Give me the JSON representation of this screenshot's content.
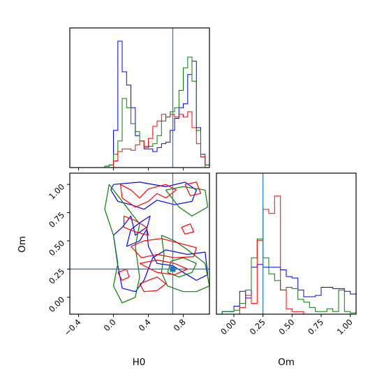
{
  "chart_data": {
    "type": "corner",
    "parameters": [
      "H0",
      "Om"
    ],
    "truth": {
      "H0": 0.68,
      "Om": 0.25
    },
    "truth_color": "#1f77b4",
    "series_colors": [
      "#0000ff",
      "#008000",
      "#ff0000"
    ],
    "panels": {
      "hist_H0": {
        "xlim": [
          -0.5,
          1.1
        ],
        "ticks": [
          -0.4,
          0.0,
          0.4,
          0.8
        ],
        "tick_labels": [
          "−0.4",
          "0.0",
          "0.4",
          "0.8"
        ],
        "bin_edges": [
          -0.1,
          -0.05,
          0.0,
          0.05,
          0.1,
          0.15,
          0.2,
          0.25,
          0.3,
          0.35,
          0.4,
          0.45,
          0.5,
          0.55,
          0.6,
          0.65,
          0.7,
          0.75,
          0.8,
          0.85,
          0.9,
          0.95,
          1.0,
          1.05,
          1.1
        ],
        "ymax": 1.0,
        "series": [
          {
            "color": "#0000ff",
            "counts": [
              0.01,
              0.02,
              0.28,
              0.95,
              0.72,
              0.62,
              0.45,
              0.24,
              0.2,
              0.14,
              0.14,
              0.12,
              0.15,
              0.18,
              0.19,
              0.28,
              0.37,
              0.45,
              0.48,
              0.7,
              0.8,
              0.3,
              0.1,
              0.02
            ]
          },
          {
            "color": "#008000",
            "counts": [
              0.01,
              0.02,
              0.1,
              0.2,
              0.52,
              0.45,
              0.33,
              0.27,
              0.2,
              0.16,
              0.16,
              0.18,
              0.24,
              0.35,
              0.38,
              0.42,
              0.45,
              0.58,
              0.75,
              0.83,
              0.65,
              0.28,
              0.08,
              0.02
            ]
          },
          {
            "color": "#ff0000",
            "counts": [
              0,
              0,
              0.05,
              0.12,
              0.14,
              0.14,
              0.13,
              0.17,
              0.2,
              0.15,
              0.22,
              0.31,
              0.35,
              0.4,
              0.38,
              0.4,
              0.38,
              0.4,
              0.38,
              0.42,
              0.3,
              0.18,
              0.08,
              0
            ]
          }
        ]
      },
      "hist_Om": {
        "xlim": [
          -0.15,
          1.05
        ],
        "ticks": [
          0.0,
          0.25,
          0.5,
          0.75,
          1.0
        ],
        "tick_labels": [
          "0.00",
          "0.25",
          "0.50",
          "0.75",
          "1.00"
        ],
        "bin_edges": [
          -0.1,
          -0.05,
          0.0,
          0.05,
          0.1,
          0.15,
          0.2,
          0.25,
          0.3,
          0.35,
          0.4,
          0.45,
          0.5,
          0.55,
          0.6,
          0.65,
          0.7,
          0.75,
          0.8,
          0.85,
          0.9,
          0.95,
          1.0,
          1.05
        ],
        "ymax": 1.0,
        "series": [
          {
            "color": "#0000ff",
            "counts": [
              0.02,
              0.02,
              0.06,
              0.17,
              0.12,
              0.35,
              0.37,
              0.35,
              0.35,
              0.35,
              0.33,
              0.28,
              0.27,
              0.18,
              0.13,
              0.13,
              0.14,
              0.2,
              0.2,
              0.19,
              0.19,
              0.17,
              0.15
            ]
          },
          {
            "color": "#008000",
            "counts": [
              0.02,
              0.02,
              0.03,
              0.08,
              0.18,
              0.42,
              0.56,
              0.42,
              0.3,
              0.25,
              0.18,
              0.2,
              0.19,
              0.11,
              0.09,
              0.05,
              0.02,
              0.02,
              0.04,
              0.02,
              0.18,
              0.02,
              0.01
            ]
          },
          {
            "color": "#ff0000",
            "counts": [
              0,
              0,
              0,
              0.05,
              0.14,
              0.08,
              0.55,
              0.78,
              0.75,
              0.88,
              0.18,
              0.04,
              0.02,
              0.02,
              0,
              0,
              0,
              0,
              0,
              0,
              0,
              0,
              0
            ]
          }
        ]
      },
      "contour_H0_Om": {
        "xlim": [
          -0.5,
          1.1
        ],
        "ylim": [
          -0.15,
          1.1
        ],
        "xticks": [
          -0.4,
          0.0,
          0.4,
          0.8
        ],
        "xtick_labels": [
          "−0.4",
          "0.0",
          "0.4",
          "0.8"
        ],
        "yticks": [
          0.0,
          0.25,
          0.5,
          0.75,
          1.0
        ],
        "ytick_labels": [
          "0.00",
          "0.25",
          "0.50",
          "0.75",
          "1.00"
        ],
        "contours": [
          {
            "color": "#0000ff",
            "points": [
              [
                0.0,
                1.0
              ],
              [
                0.3,
                1.02
              ],
              [
                0.6,
                0.98
              ],
              [
                0.82,
                1.02
              ],
              [
                0.95,
                0.95
              ],
              [
                0.9,
                0.85
              ],
              [
                0.7,
                0.82
              ],
              [
                0.5,
                0.86
              ],
              [
                0.35,
                0.78
              ],
              [
                0.2,
                0.82
              ],
              [
                0.05,
                0.85
              ],
              [
                -0.03,
                0.95
              ],
              [
                0.0,
                1.0
              ]
            ]
          },
          {
            "color": "#0000ff",
            "points": [
              [
                0.0,
                0.55
              ],
              [
                0.05,
                0.28
              ],
              [
                0.1,
                0.08
              ],
              [
                0.25,
                0.05
              ],
              [
                0.35,
                0.15
              ],
              [
                0.45,
                0.35
              ],
              [
                0.6,
                0.42
              ],
              [
                0.85,
                0.38
              ],
              [
                1.05,
                0.4
              ],
              [
                1.08,
                0.2
              ],
              [
                0.95,
                0.15
              ],
              [
                0.8,
                0.22
              ],
              [
                0.68,
                0.28
              ],
              [
                0.5,
                0.3
              ],
              [
                0.4,
                0.45
              ],
              [
                0.38,
                0.62
              ],
              [
                0.25,
                0.55
              ],
              [
                0.2,
                0.72
              ],
              [
                0.1,
                0.62
              ],
              [
                0.0,
                0.55
              ]
            ]
          },
          {
            "color": "#0000ff",
            "points": [
              [
                0.15,
                0.45
              ],
              [
                0.3,
                0.5
              ],
              [
                0.38,
                0.6
              ],
              [
                0.42,
                0.72
              ],
              [
                0.3,
                0.66
              ],
              [
                0.2,
                0.6
              ],
              [
                0.15,
                0.45
              ]
            ]
          },
          {
            "color": "#008000",
            "points": [
              [
                -0.1,
                0.78
              ],
              [
                0.0,
                0.55
              ],
              [
                0.05,
                0.3
              ],
              [
                0.0,
                0.1
              ],
              [
                0.1,
                -0.05
              ],
              [
                0.25,
                0.0
              ],
              [
                0.3,
                0.18
              ],
              [
                0.25,
                0.45
              ],
              [
                0.3,
                0.65
              ],
              [
                0.2,
                0.75
              ],
              [
                0.05,
                0.9
              ],
              [
                -0.05,
                1.0
              ],
              [
                -0.1,
                0.78
              ]
            ]
          },
          {
            "color": "#008000",
            "points": [
              [
                0.55,
                0.55
              ],
              [
                0.7,
                0.5
              ],
              [
                0.85,
                0.42
              ],
              [
                1.05,
                0.3
              ],
              [
                1.1,
                0.1
              ],
              [
                0.95,
                0.05
              ],
              [
                0.8,
                0.05
              ],
              [
                0.62,
                0.1
              ],
              [
                0.55,
                0.22
              ],
              [
                0.58,
                0.38
              ],
              [
                0.55,
                0.55
              ]
            ]
          },
          {
            "color": "#008000",
            "points": [
              [
                0.6,
                0.95
              ],
              [
                0.8,
                0.98
              ],
              [
                1.05,
                0.95
              ],
              [
                1.08,
                0.8
              ],
              [
                0.9,
                0.72
              ],
              [
                0.75,
                0.8
              ],
              [
                0.6,
                0.95
              ]
            ]
          },
          {
            "color": "#008000",
            "points": [
              [
                0.62,
                0.22
              ],
              [
                0.75,
                0.18
              ],
              [
                0.9,
                0.22
              ],
              [
                0.95,
                0.3
              ],
              [
                0.8,
                0.35
              ],
              [
                0.66,
                0.32
              ],
              [
                0.62,
                0.22
              ]
            ]
          },
          {
            "color": "#ff0000",
            "points": [
              [
                0.08,
                1.0
              ],
              [
                0.2,
                0.95
              ],
              [
                0.3,
                0.88
              ],
              [
                0.4,
                0.96
              ],
              [
                0.6,
                1.0
              ],
              [
                0.72,
                0.95
              ],
              [
                0.6,
                0.88
              ],
              [
                0.5,
                0.92
              ],
              [
                0.4,
                0.85
              ],
              [
                0.25,
                0.8
              ],
              [
                0.1,
                0.88
              ],
              [
                0.08,
                1.0
              ]
            ]
          },
          {
            "color": "#ff0000",
            "points": [
              [
                0.12,
                0.72
              ],
              [
                0.25,
                0.68
              ],
              [
                0.38,
                0.62
              ],
              [
                0.4,
                0.55
              ],
              [
                0.25,
                0.58
              ],
              [
                0.12,
                0.62
              ],
              [
                0.12,
                0.72
              ]
            ]
          },
          {
            "color": "#ff0000",
            "points": [
              [
                0.2,
                0.45
              ],
              [
                0.35,
                0.5
              ],
              [
                0.55,
                0.52
              ],
              [
                0.75,
                0.48
              ],
              [
                0.95,
                0.44
              ],
              [
                0.92,
                0.36
              ],
              [
                0.7,
                0.35
              ],
              [
                0.5,
                0.38
              ],
              [
                0.32,
                0.35
              ],
              [
                0.2,
                0.45
              ]
            ]
          },
          {
            "color": "#ff0000",
            "points": [
              [
                0.3,
                0.3
              ],
              [
                0.5,
                0.33
              ],
              [
                0.7,
                0.3
              ],
              [
                0.85,
                0.25
              ],
              [
                0.7,
                0.2
              ],
              [
                0.5,
                0.22
              ],
              [
                0.3,
                0.3
              ]
            ]
          },
          {
            "color": "#ff0000",
            "points": [
              [
                0.3,
                0.12
              ],
              [
                0.5,
                0.18
              ],
              [
                0.6,
                0.12
              ],
              [
                0.5,
                0.06
              ],
              [
                0.35,
                0.05
              ],
              [
                0.3,
                0.12
              ]
            ]
          },
          {
            "color": "#ff0000",
            "points": [
              [
                0.05,
                0.22
              ],
              [
                0.15,
                0.25
              ],
              [
                0.18,
                0.18
              ],
              [
                0.1,
                0.15
              ],
              [
                0.05,
                0.22
              ]
            ]
          },
          {
            "color": "#ff0000",
            "points": [
              [
                0.78,
                0.62
              ],
              [
                0.88,
                0.65
              ],
              [
                0.92,
                0.58
              ],
              [
                0.82,
                0.56
              ],
              [
                0.78,
                0.62
              ]
            ]
          },
          {
            "color": "#ff0000",
            "points": [
              [
                0.82,
                1.0
              ],
              [
                0.95,
                1.02
              ],
              [
                1.0,
                0.92
              ],
              [
                0.88,
                0.9
              ],
              [
                0.82,
                1.0
              ]
            ]
          }
        ]
      }
    },
    "xlabels": [
      "H0",
      "Om"
    ],
    "ylabel_left": "Om"
  }
}
